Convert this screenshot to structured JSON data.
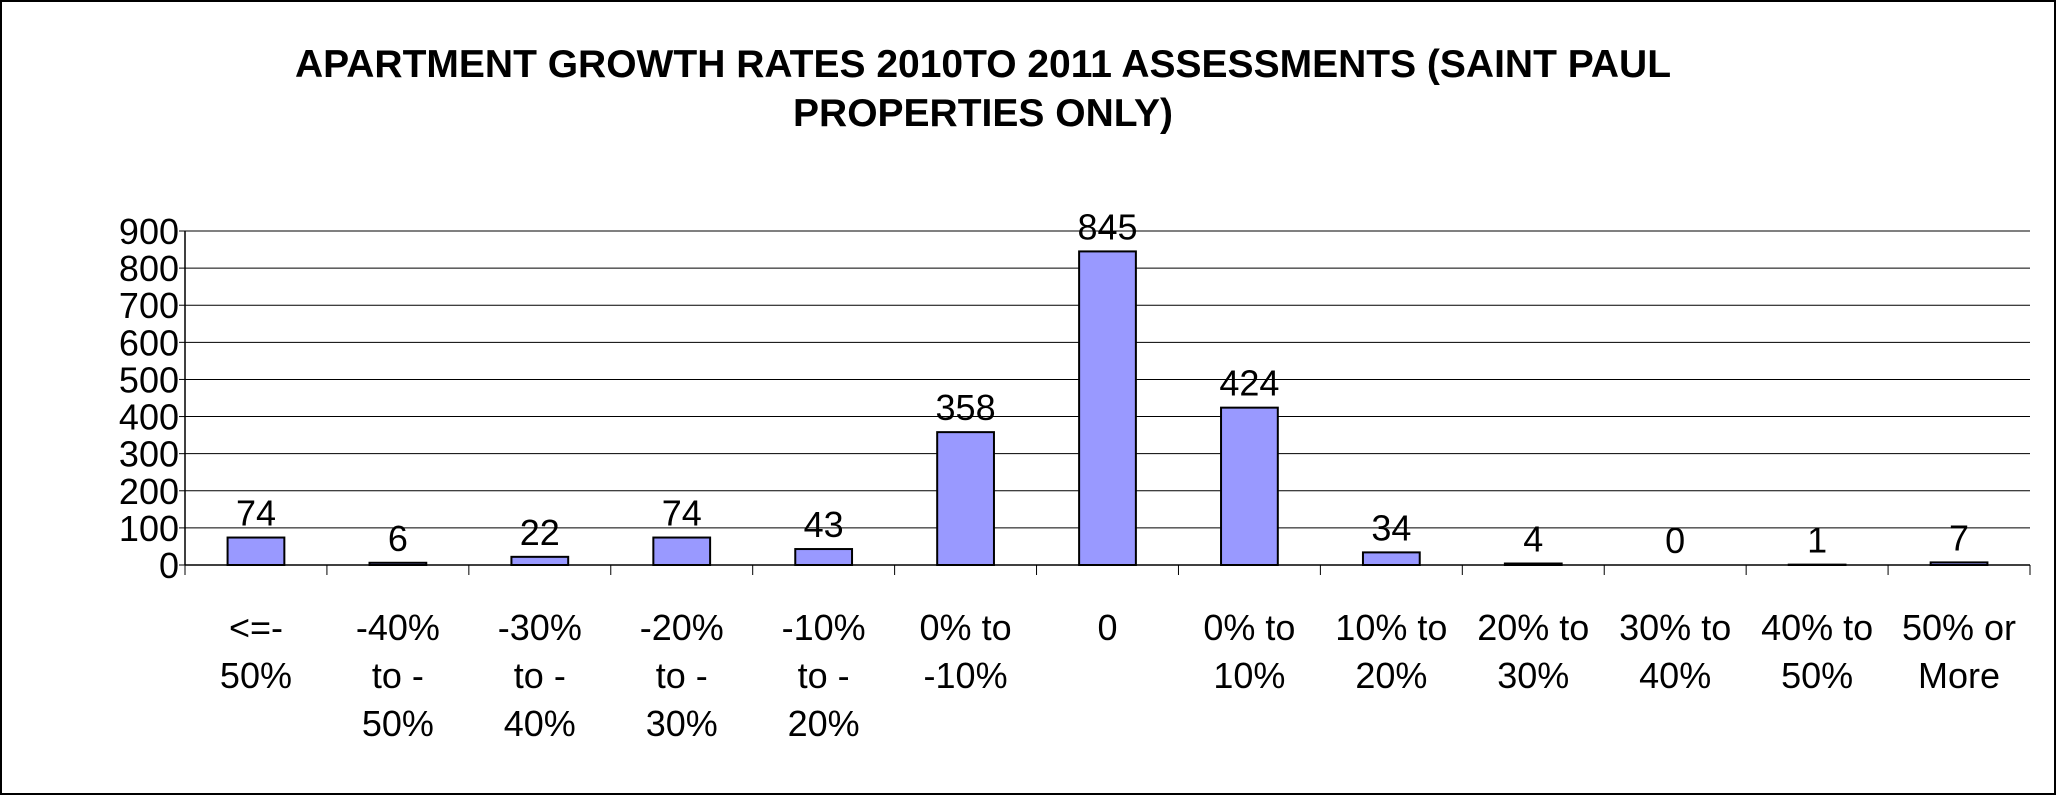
{
  "chart_data": {
    "type": "bar",
    "title": "APARTMENT GROWTH RATES 2010TO 2011 ASSESSMENTS (SAINT PAUL PROPERTIES ONLY)",
    "categories": [
      [
        "<=-",
        "50%"
      ],
      [
        "-40%",
        "to -",
        "50%"
      ],
      [
        "-30%",
        "to -",
        "40%"
      ],
      [
        "-20%",
        "to -",
        "30%"
      ],
      [
        "-10%",
        "to -",
        "20%"
      ],
      [
        "0%  to",
        "-10%"
      ],
      [
        "0"
      ],
      [
        "0% to",
        "10%"
      ],
      [
        "10% to",
        "20%"
      ],
      [
        "20% to",
        "30%"
      ],
      [
        "30% to",
        "40%"
      ],
      [
        "40% to",
        "50%"
      ],
      [
        "50% or",
        "More"
      ]
    ],
    "values": [
      74,
      6,
      22,
      74,
      43,
      358,
      845,
      424,
      34,
      4,
      0,
      1,
      7
    ],
    "color": "#9999ff",
    "ylim": [
      0,
      900
    ],
    "yticks": [
      0,
      100,
      200,
      300,
      400,
      500,
      600,
      700,
      800,
      900
    ],
    "grid": true
  }
}
